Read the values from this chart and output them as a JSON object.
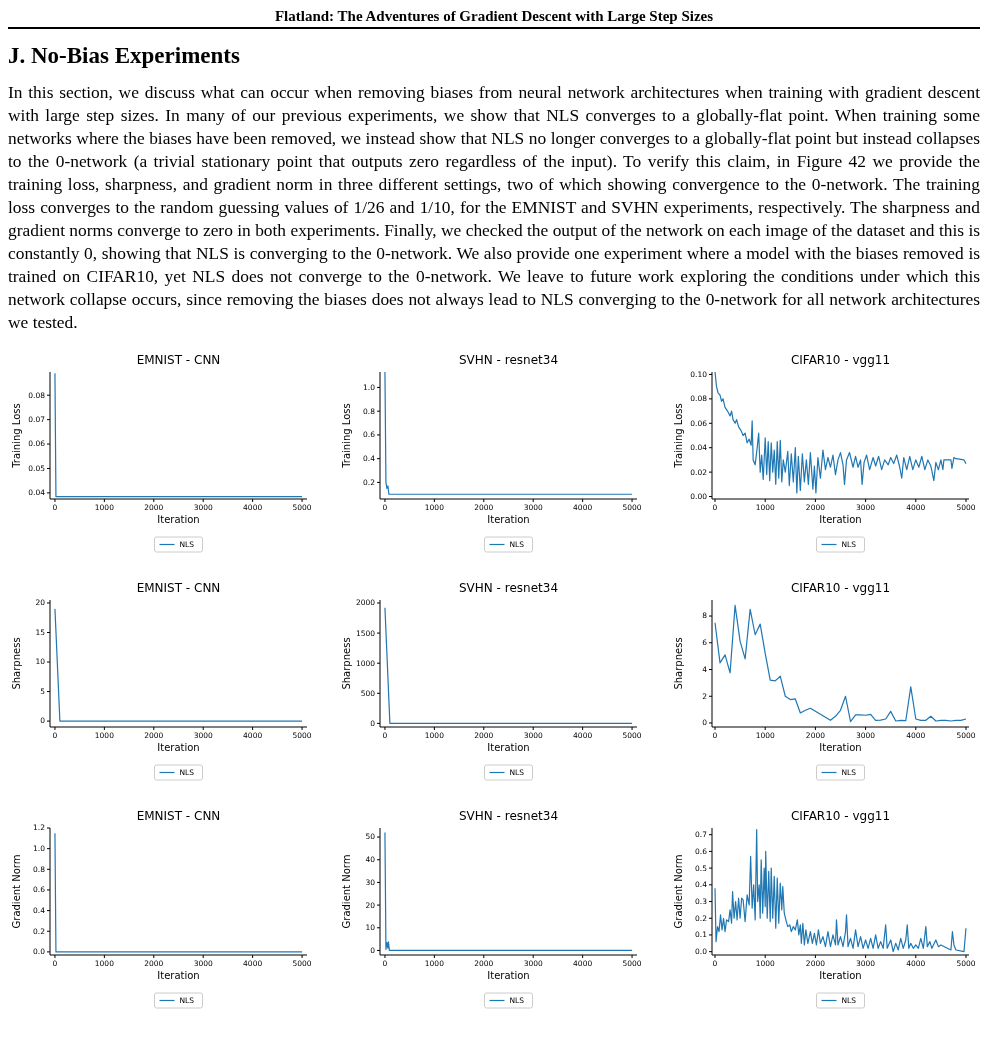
{
  "chart_data": [
    {
      "type": "other",
      "title": "J. No-Bias Experiments",
      "annotations": [
        "Flatland: The Adventures of Gradient Descent with Large Step Sizes",
        "In this section, we discuss what can occur when removing biases from neural network architectures when training with gradient descent with large step sizes. In many of our previous experiments, we show that NLS converges to a globally-flat point. When training some networks where the biases have been removed, we instead show that NLS no longer converges to a globally-flat point but instead collapses to the 0-network (a trivial stationary point that outputs zero regardless of the input). To verify this claim, in Figure 42 we provide the training loss, sharpness, and gradient norm in three different settings, two of which showing convergence to the 0-network. The training loss converges to the random guessing values of 1/26 and 1/10, for the EMNIST and SVHN experiments, respectively. The sharpness and gradient norms converge to zero in both experiments. Finally, we checked the output of the network on each image of the dataset and this is constantly 0, showing that NLS is converging to the 0-network. We also provide one experiment where a model with the biases removed is trained on CIFAR10, yet NLS does not converge to the 0-network. We leave to future work exploring the conditions under which this network collapse occurs, since removing the biases does not always lead to NLS converging to the 0-network for all network architectures we tested."
      ]
    },
    {
      "type": "line",
      "title": "EMNIST - CNN",
      "xlabel": "Iteration",
      "ylabel": "Training Loss",
      "legend": "bottom",
      "xlim": [
        -100,
        5100
      ],
      "xticks": [
        0,
        1000,
        2000,
        3000,
        4000,
        5000
      ],
      "ylim": [
        0.0375,
        0.0895
      ],
      "yticks": [
        0.04,
        0.05,
        0.06,
        0.07,
        0.08
      ],
      "series": [
        {
          "name": "NLS",
          "color": "#1f77b4",
          "x": [
            0,
            20,
            5000
          ],
          "values": [
            0.089,
            0.0385,
            0.0385
          ]
        }
      ]
    },
    {
      "type": "line",
      "title": "SVHN - resnet34",
      "xlabel": "Iteration",
      "ylabel": "Training Loss",
      "legend": "bottom",
      "xlim": [
        -100,
        5100
      ],
      "xticks": [
        0,
        1000,
        2000,
        3000,
        4000,
        5000
      ],
      "ylim": [
        0.06,
        1.13
      ],
      "yticks": [
        0.2,
        0.4,
        0.6,
        0.8,
        {
          "value": 1,
          "label": "1.0"
        }
      ],
      "series": [
        {
          "name": "NLS",
          "color": "#1f77b4",
          "x": [
            0,
            20,
            40,
            60,
            80,
            100,
            5000
          ],
          "values": [
            1.13,
            0.2,
            0.15,
            0.17,
            0.1,
            0.1,
            0.1
          ]
        }
      ]
    },
    {
      "type": "line",
      "title": "CIFAR10 - vgg11",
      "xlabel": "Iteration",
      "ylabel": "Training Loss",
      "legend": "bottom",
      "xlim": [
        -60,
        5060
      ],
      "xticks": [
        0,
        1000,
        2000,
        3000,
        4000,
        5000
      ],
      "ylim": [
        -0.002,
        0.102
      ],
      "yticks": [
        {
          "value": 0,
          "label": "0.00"
        },
        0.02,
        0.04,
        0.06,
        0.08,
        {
          "value": 0.1,
          "label": "0.10"
        }
      ],
      "series": [
        {
          "name": "NLS",
          "color": "#1f77b4",
          "x": [
            0,
            30,
            60,
            100,
            130,
            160,
            200,
            250,
            300,
            330,
            360,
            400,
            430,
            470,
            520,
            560,
            600,
            640,
            680,
            720,
            740,
            760,
            800,
            840,
            870,
            900,
            930,
            960,
            1000,
            1030,
            1060,
            1090,
            1120,
            1150,
            1180,
            1210,
            1240,
            1270,
            1300,
            1330,
            1360,
            1400,
            1450,
            1480,
            1520,
            1560,
            1600,
            1630,
            1660,
            1700,
            1740,
            1780,
            1820,
            1860,
            1900,
            1950,
            1980,
            2010,
            2050,
            2100,
            2150,
            2200,
            2250,
            2300,
            2350,
            2400,
            2450,
            2500,
            2550,
            2580,
            2620,
            2680,
            2750,
            2800,
            2850,
            2900,
            2930,
            2970,
            3020,
            3080,
            3150,
            3200,
            3260,
            3320,
            3380,
            3450,
            3500,
            3560,
            3620,
            3680,
            3720,
            3760,
            3820,
            3880,
            3940,
            4000,
            4060,
            4120,
            4180,
            4240,
            4300,
            4360,
            4400,
            4450,
            4500,
            4540,
            4560,
            4700,
            4720,
            4760,
            4800,
            4960,
            5000
          ],
          "values": [
            0.102,
            0.09,
            0.085,
            0.083,
            0.078,
            0.08,
            0.073,
            0.07,
            0.066,
            0.07,
            0.063,
            0.06,
            0.063,
            0.057,
            0.054,
            0.05,
            0.052,
            0.044,
            0.047,
            0.042,
            0.062,
            0.03,
            0.026,
            0.04,
            0.052,
            0.02,
            0.034,
            0.014,
            0.048,
            0.018,
            0.045,
            0.013,
            0.044,
            0.02,
            0.038,
            0.01,
            0.045,
            0.015,
            0.046,
            0.012,
            0.03,
            0.02,
            0.037,
            0.009,
            0.035,
            0.012,
            0.04,
            0.003,
            0.033,
            0.005,
            0.035,
            0.012,
            0.03,
            0.01,
            0.036,
            0.006,
            0.025,
            0.003,
            0.032,
            0.015,
            0.038,
            0.022,
            0.032,
            0.024,
            0.034,
            0.018,
            0.03,
            0.036,
            0.026,
            0.01,
            0.03,
            0.036,
            0.024,
            0.033,
            0.024,
            0.03,
            0.01,
            0.028,
            0.034,
            0.022,
            0.032,
            0.025,
            0.033,
            0.022,
            0.03,
            0.026,
            0.032,
            0.027,
            0.034,
            0.024,
            0.015,
            0.032,
            0.022,
            0.033,
            0.022,
            0.03,
            0.024,
            0.033,
            0.022,
            0.03,
            0.025,
            0.013,
            0.028,
            0.022,
            0.03,
            0.022,
            0.03,
            0.03,
            0.023,
            0.032,
            0.031,
            0.03,
            0.027
          ]
        }
      ]
    },
    {
      "type": "line",
      "title": "EMNIST - CNN",
      "xlabel": "Iteration",
      "ylabel": "Sharpness",
      "legend": "bottom",
      "xlim": [
        -100,
        5100
      ],
      "xticks": [
        0,
        1000,
        2000,
        3000,
        4000,
        5000
      ],
      "ylim": [
        -1,
        20.5
      ],
      "yticks": [
        0,
        5,
        10,
        15,
        20
      ],
      "series": [
        {
          "name": "NLS",
          "color": "#1f77b4",
          "x": [
            0,
            100,
            5000
          ],
          "values": [
            19,
            0,
            0
          ]
        }
      ]
    },
    {
      "type": "line",
      "title": "SVHN - resnet34",
      "xlabel": "Iteration",
      "ylabel": "Sharpness",
      "legend": "bottom",
      "xlim": [
        -100,
        5100
      ],
      "xticks": [
        0,
        1000,
        2000,
        3000,
        4000,
        5000
      ],
      "ylim": [
        -60,
        2050
      ],
      "yticks": [
        0,
        500,
        1000,
        1500,
        2000
      ],
      "series": [
        {
          "name": "NLS",
          "color": "#1f77b4",
          "x": [
            0,
            100,
            5000
          ],
          "values": [
            1920,
            0,
            0
          ]
        }
      ]
    },
    {
      "type": "line",
      "title": "CIFAR10 - vgg11",
      "xlabel": "Iteration",
      "ylabel": "Sharpness",
      "legend": "bottom",
      "xlim": [
        -60,
        5060
      ],
      "xticks": [
        0,
        1000,
        2000,
        3000,
        4000,
        5000
      ],
      "ylim": [
        -0.3,
        9.2
      ],
      "yticks": [
        0,
        2,
        4,
        6,
        8
      ],
      "series": [
        {
          "name": "NLS",
          "color": "#1f77b4",
          "x": [
            0,
            100,
            200,
            300,
            400,
            500,
            600,
            700,
            800,
            900,
            1000,
            1100,
            1200,
            1300,
            1400,
            1500,
            1600,
            1700,
            1800,
            1900,
            2300,
            2400,
            2500,
            2600,
            2700,
            2800,
            2900,
            3000,
            3100,
            3200,
            3300,
            3400,
            3500,
            3600,
            3700,
            3800,
            3900,
            4000,
            4100,
            4200,
            4300,
            4400,
            4500,
            4600,
            4700,
            4800,
            4900,
            5000
          ],
          "values": [
            7.5,
            4.5,
            5.1,
            3.75,
            8.8,
            6.1,
            4.8,
            8.5,
            6.6,
            7.4,
            5.2,
            3.2,
            3.15,
            3.5,
            2.0,
            1.75,
            1.8,
            0.75,
            0.95,
            1.1,
            0.2,
            0.5,
            0.95,
            2.0,
            0.1,
            0.6,
            0.6,
            0.58,
            0.65,
            0.2,
            0.22,
            0.3,
            0.87,
            0.15,
            0.2,
            0.17,
            2.7,
            0.3,
            0.2,
            0.2,
            0.5,
            0.15,
            0.2,
            0.2,
            0.15,
            0.2,
            0.2,
            0.3
          ]
        }
      ]
    },
    {
      "type": "line",
      "title": "EMNIST - CNN",
      "xlabel": "Iteration",
      "ylabel": "Gradient Norm",
      "legend": "bottom",
      "xlim": [
        -100,
        5100
      ],
      "xticks": [
        0,
        1000,
        2000,
        3000,
        4000,
        5000
      ],
      "ylim": [
        -0.03,
        1.2
      ],
      "yticks": [
        {
          "value": 0,
          "label": "0.0"
        },
        0.2,
        0.4,
        0.6,
        0.8,
        {
          "value": 1,
          "label": "1.0"
        },
        1.2
      ],
      "series": [
        {
          "name": "NLS",
          "color": "#1f77b4",
          "x": [
            0,
            20,
            5000
          ],
          "values": [
            1.15,
            0,
            0
          ]
        }
      ]
    },
    {
      "type": "line",
      "title": "SVHN - resnet34",
      "xlabel": "Iteration",
      "ylabel": "Gradient Norm",
      "legend": "bottom",
      "xlim": [
        -100,
        5100
      ],
      "xticks": [
        0,
        1000,
        2000,
        3000,
        4000,
        5000
      ],
      "ylim": [
        -2,
        54
      ],
      "yticks": [
        0,
        10,
        20,
        30,
        40,
        50
      ],
      "series": [
        {
          "name": "NLS",
          "color": "#1f77b4",
          "x": [
            0,
            20,
            40,
            60,
            70,
            90,
            5000
          ],
          "values": [
            52,
            0.5,
            3.5,
            1,
            3.8,
            0,
            0
          ]
        }
      ]
    },
    {
      "type": "line",
      "title": "CIFAR10 - vgg11",
      "xlabel": "Iteration",
      "ylabel": "Gradient Norm",
      "legend": "bottom",
      "xlim": [
        -60,
        5060
      ],
      "xticks": [
        0,
        1000,
        2000,
        3000,
        4000,
        5000
      ],
      "ylim": [
        -0.02,
        0.74
      ],
      "yticks": [
        {
          "value": 0,
          "label": "0.0"
        },
        0.1,
        0.2,
        0.3,
        0.4,
        0.5,
        0.6,
        0.7
      ],
      "series": [
        {
          "name": "NLS",
          "color": "#1f77b4",
          "x": [
            0,
            20,
            50,
            80,
            110,
            140,
            170,
            200,
            230,
            270,
            300,
            330,
            350,
            380,
            410,
            440,
            470,
            500,
            530,
            560,
            600,
            640,
            680,
            710,
            740,
            770,
            800,
            830,
            850,
            880,
            900,
            920,
            950,
            980,
            1000,
            1010,
            1040,
            1070,
            1100,
            1120,
            1150,
            1180,
            1210,
            1240,
            1270,
            1300,
            1330,
            1350,
            1380,
            1420,
            1450,
            1490,
            1520,
            1560,
            1600,
            1640,
            1670,
            1700,
            1720,
            1750,
            1780,
            1810,
            1850,
            1900,
            1940,
            1980,
            2020,
            2060,
            2100,
            2150,
            2200,
            2250,
            2300,
            2350,
            2400,
            2420,
            2450,
            2500,
            2550,
            2600,
            2620,
            2650,
            2700,
            2750,
            2800,
            2850,
            2900,
            2950,
            3000,
            3050,
            3100,
            3150,
            3200,
            3250,
            3300,
            3350,
            3400,
            3430,
            3500,
            3550,
            3600,
            3650,
            3700,
            3750,
            3800,
            3830,
            3860,
            3900,
            3950,
            4000,
            4050,
            4100,
            4150,
            4200,
            4230,
            4280,
            4320,
            4400,
            4450,
            4500,
            4700,
            4730,
            4760,
            4800,
            4960,
            5000
          ],
          "values": [
            0.38,
            0.06,
            0.15,
            0.12,
            0.22,
            0.13,
            0.2,
            0.12,
            0.19,
            0.18,
            0.25,
            0.17,
            0.36,
            0.2,
            0.3,
            0.19,
            0.32,
            0.2,
            0.32,
            0.31,
            0.18,
            0.34,
            0.28,
            0.57,
            0.26,
            0.4,
            0.19,
            0.73,
            0.3,
            0.4,
            0.2,
            0.55,
            0.23,
            0.5,
            0.27,
            0.6,
            0.2,
            0.48,
            0.18,
            0.5,
            0.2,
            0.45,
            0.14,
            0.44,
            0.17,
            0.41,
            0.25,
            0.39,
            0.23,
            0.18,
            0.15,
            0.16,
            0.12,
            0.15,
            0.13,
            0.19,
            0.1,
            0.16,
            0.05,
            0.17,
            0.04,
            0.13,
            0.05,
            0.12,
            0.05,
            0.11,
            0.04,
            0.13,
            0.05,
            0.09,
            0.03,
            0.12,
            0.03,
            0.1,
            0.04,
            0.19,
            0.04,
            0.09,
            0.03,
            0.12,
            0.22,
            0.03,
            0.08,
            0.02,
            0.13,
            0.03,
            0.09,
            0.02,
            0.07,
            0.02,
            0.08,
            0.02,
            0.1,
            0.02,
            0.06,
            0.02,
            0.16,
            0.02,
            0.07,
            0.0,
            0.05,
            0.01,
            0.08,
            0.02,
            0.07,
            0.16,
            0.02,
            0.05,
            0.02,
            0.04,
            0.02,
            0.08,
            0.02,
            0.15,
            0.03,
            0.06,
            0.02,
            0.07,
            0.03,
            0.04,
            0.01,
            0.12,
            0.04,
            0.01,
            0.0,
            0.14
          ]
        }
      ]
    }
  ]
}
